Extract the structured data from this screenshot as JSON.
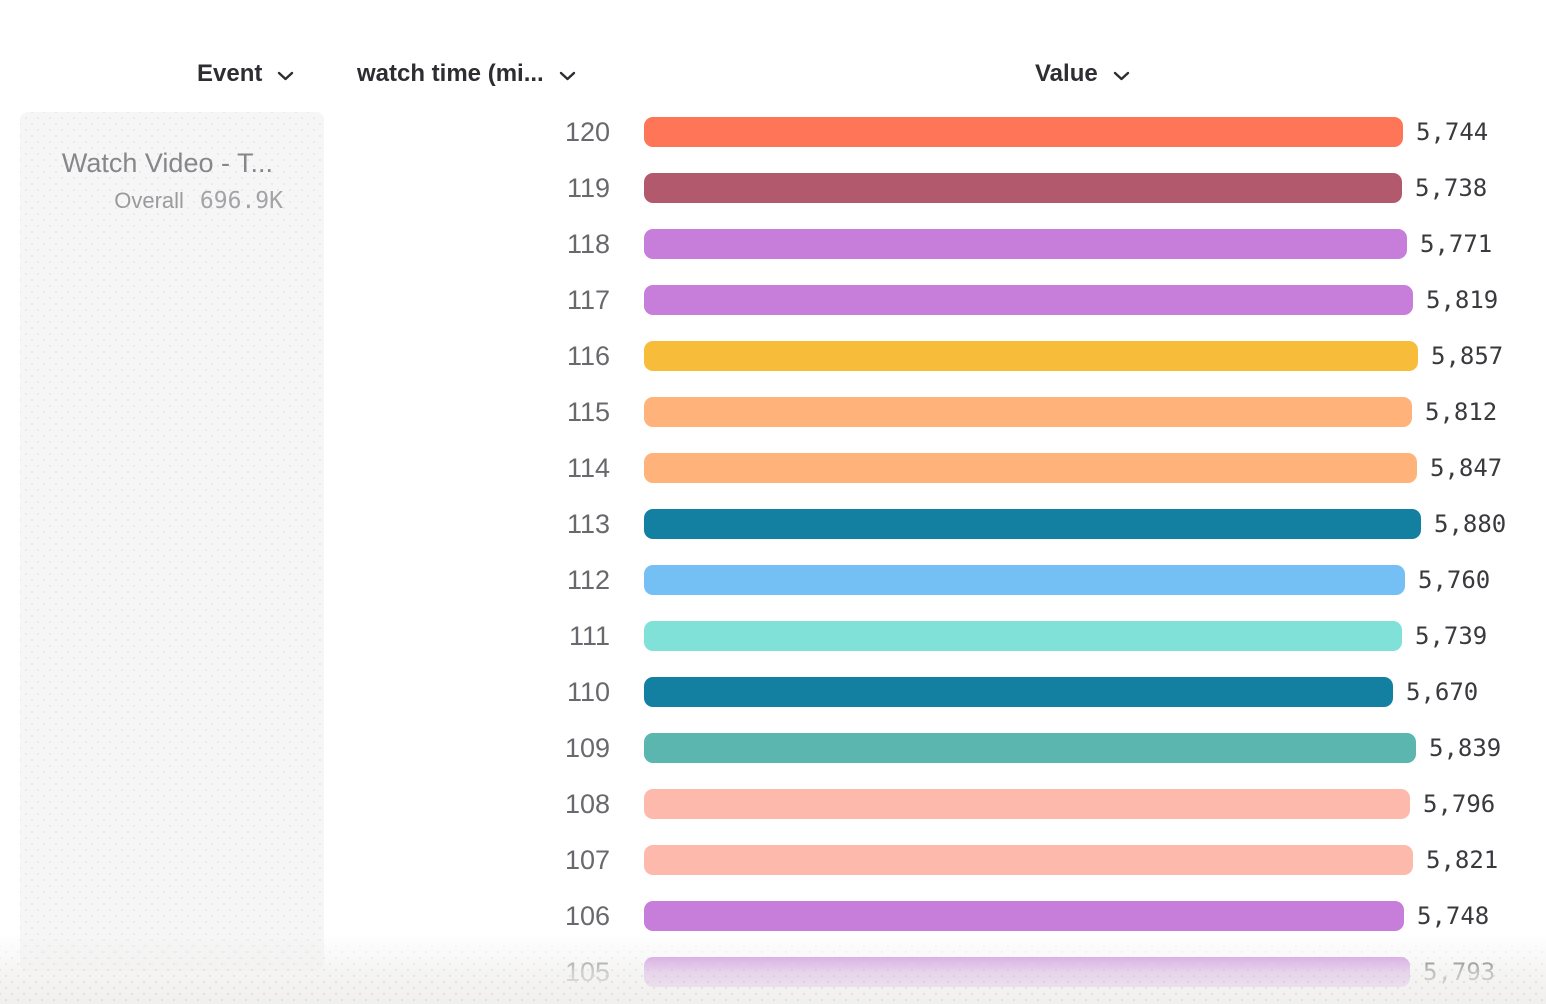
{
  "header": {
    "columns": [
      {
        "label": "Event"
      },
      {
        "label": "watch time (mi..."
      },
      {
        "label": "Value"
      }
    ]
  },
  "event_panel": {
    "title": "Watch Video - T...",
    "overall_label": "Overall",
    "overall_value": "696.9K"
  },
  "chart_data": {
    "type": "bar",
    "orientation": "horizontal",
    "title": "Watch Video - T... by watch time (minutes)",
    "group_by": "watch time (mi...",
    "series_name": "Watch Video - T...",
    "overall_total": "696.9K",
    "categories": [
      "120",
      "119",
      "118",
      "117",
      "116",
      "115",
      "114",
      "113",
      "112",
      "111",
      "110",
      "109",
      "108",
      "107",
      "106",
      "105"
    ],
    "values": [
      5744,
      5738,
      5771,
      5819,
      5857,
      5812,
      5847,
      5880,
      5760,
      5739,
      5670,
      5839,
      5796,
      5821,
      5748,
      5793
    ],
    "value_labels": [
      "5,744",
      "5,738",
      "5,771",
      "5,819",
      "5,857",
      "5,812",
      "5,847",
      "5,880",
      "5,760",
      "5,739",
      "5,670",
      "5,839",
      "5,796",
      "5,821",
      "5,748",
      "5,793"
    ],
    "bar_colors": [
      "#FF7557",
      "#B2596E",
      "#C77EDB",
      "#C77EDB",
      "#F8BC3B",
      "#FFB27A",
      "#FFB27A",
      "#1380A1",
      "#74BFF4",
      "#80E1D9",
      "#1380A1",
      "#5AB6AF",
      "#FDB9AC",
      "#FDB9AC",
      "#C77EDB",
      "#C77EDB"
    ],
    "xlim": [
      0,
      5880
    ],
    "grid": false,
    "legend": false
  },
  "colors": {
    "header_text": "#2d2d32",
    "category_text": "#69696d",
    "value_text": "#3a3a3e",
    "card_bg": "#f6f6f6",
    "card_title_text": "#87878b",
    "card_subtitle_text": "#9b9b9e"
  }
}
